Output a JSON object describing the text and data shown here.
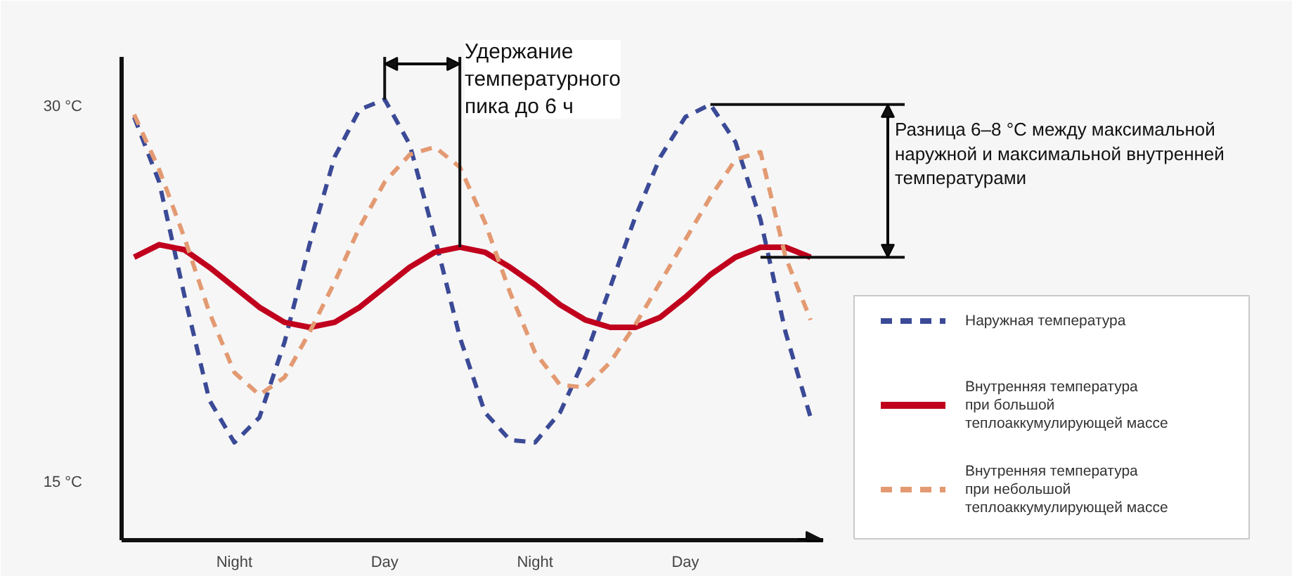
{
  "chart_data": {
    "type": "line",
    "categories": [
      null,
      null,
      null,
      null,
      "Night",
      null,
      null,
      null,
      null,
      null,
      "Day",
      null,
      null,
      null,
      null,
      null,
      "Night",
      null,
      null,
      null,
      null,
      null,
      "Day",
      null,
      null,
      null,
      null,
      null
    ],
    "ylim": [
      12.7,
      32
    ],
    "yticks": [
      {
        "value": 30,
        "label": "30 °C"
      },
      {
        "value": 15,
        "label": "15 °C"
      }
    ],
    "grid": false,
    "legend": "bottom right",
    "annotations": [
      "Удержание температурного пика до 6 ч",
      "Разница 6–8 °C между максимальной наружной и максимальной внутренней температурами"
    ],
    "ref_lines": [
      {
        "axis": "y",
        "value": 30.1
      },
      {
        "axis": "y",
        "value": 24.0
      }
    ],
    "series": [
      {
        "name": "Наружная температура",
        "color": "#3b4a96",
        "line_style": "dashed",
        "values": [
          29.6,
          27.0,
          22.5,
          18.3,
          16.6,
          17.6,
          20.6,
          24.5,
          28.0,
          29.9,
          30.3,
          28.5,
          24.8,
          20.8,
          17.8,
          16.7,
          16.6,
          17.8,
          20.0,
          22.8,
          25.6,
          28.0,
          29.6,
          30.1,
          28.6,
          25.5,
          21.0,
          17.6
        ]
      },
      {
        "name": "Внутренняя температура при большой теплоаккумулирующей массе",
        "color": "#c0001d",
        "line_style": "solid",
        "values": [
          24.0,
          24.5,
          24.3,
          23.6,
          22.8,
          22.0,
          21.4,
          21.2,
          21.4,
          22.0,
          22.8,
          23.6,
          24.2,
          24.4,
          24.2,
          23.6,
          22.9,
          22.1,
          21.5,
          21.2,
          21.2,
          21.6,
          22.4,
          23.3,
          24.0,
          24.4,
          24.4,
          24.0
        ]
      },
      {
        "name": "Внутренняя температура при небольшой теплоаккумулирующей массе",
        "color": "#e39a72",
        "line_style": "dashed",
        "values": [
          29.7,
          27.5,
          24.8,
          21.8,
          19.4,
          18.5,
          19.2,
          21.0,
          23.0,
          25.2,
          27.0,
          28.1,
          28.4,
          27.6,
          25.4,
          22.6,
          20.2,
          18.9,
          18.8,
          19.8,
          21.3,
          23.0,
          24.7,
          26.4,
          27.9,
          28.2,
          24.0,
          21.5
        ]
      }
    ]
  }
}
